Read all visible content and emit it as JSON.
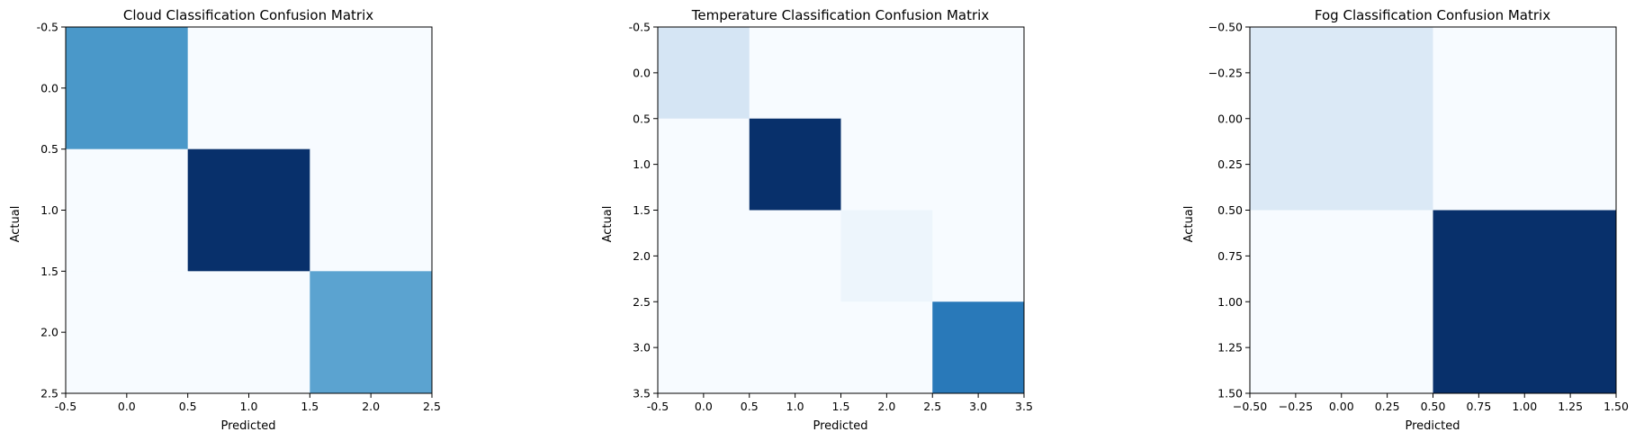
{
  "chart_data": [
    {
      "type": "heatmap",
      "title": "Cloud Classification Confusion Matrix",
      "xlabel": "Predicted",
      "ylabel": "Actual",
      "colormap": "Blues",
      "xlim": [
        -0.5,
        2.5
      ],
      "ylim": [
        2.5,
        -0.5
      ],
      "xticks": [
        "-0.5",
        "0.0",
        "0.5",
        "1.0",
        "1.5",
        "2.0",
        "2.5"
      ],
      "yticks": [
        "-0.5",
        "0.0",
        "0.5",
        "1.0",
        "1.5",
        "2.0",
        "2.5"
      ],
      "matrix": [
        [
          0.6,
          0,
          0
        ],
        [
          0,
          1.0,
          0
        ],
        [
          0,
          0,
          0.55
        ]
      ]
    },
    {
      "type": "heatmap",
      "title": "Temperature Classification Confusion Matrix",
      "xlabel": "Predicted",
      "ylabel": "Actual",
      "colormap": "Blues",
      "xlim": [
        -0.5,
        3.5
      ],
      "ylim": [
        3.5,
        -0.5
      ],
      "xticks": [
        "-0.5",
        "0.0",
        "0.5",
        "1.0",
        "1.5",
        "2.0",
        "2.5",
        "3.0",
        "3.5"
      ],
      "yticks": [
        "-0.5",
        "0.0",
        "0.5",
        "1.0",
        "1.5",
        "2.0",
        "2.5",
        "3.0",
        "3.5"
      ],
      "matrix": [
        [
          0.17,
          0,
          0,
          0
        ],
        [
          0,
          1.0,
          0,
          0
        ],
        [
          0,
          0,
          0.05,
          0
        ],
        [
          0,
          0,
          0,
          0.72
        ]
      ]
    },
    {
      "type": "heatmap",
      "title": "Fog Classification Confusion Matrix",
      "xlabel": "Predicted",
      "ylabel": "Actual",
      "colormap": "Blues",
      "xlim": [
        -0.5,
        1.5
      ],
      "ylim": [
        1.5,
        -0.5
      ],
      "xticks": [
        "−0.50",
        "−0.25",
        "0.00",
        "0.25",
        "0.50",
        "0.75",
        "1.00",
        "1.25",
        "1.50"
      ],
      "yticks": [
        "−0.50",
        "−0.25",
        "0.00",
        "0.25",
        "0.50",
        "0.75",
        "1.00",
        "1.25",
        "1.50"
      ],
      "matrix": [
        [
          0.14,
          0
        ],
        [
          0,
          1.0
        ]
      ]
    }
  ]
}
